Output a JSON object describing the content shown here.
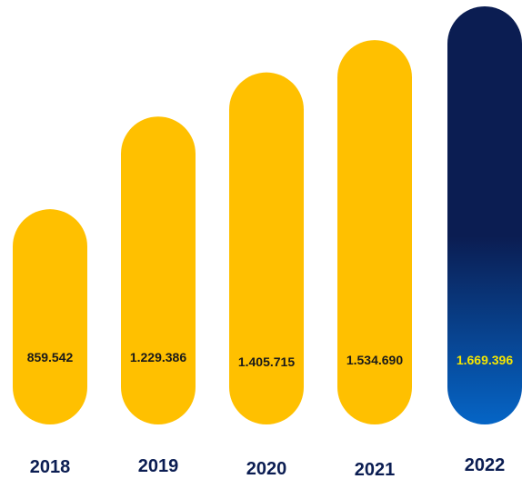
{
  "chart_data": {
    "type": "bar",
    "title": "",
    "xlabel": "",
    "ylabel": "",
    "categories": [
      "2018",
      "2019",
      "2020",
      "2021",
      "2022"
    ],
    "values": [
      859542,
      1229386,
      1405715,
      1534690,
      1669396
    ],
    "value_labels": [
      "859.542",
      "1.229.386",
      "1.405.715",
      "1.534.690",
      "1.669.396"
    ],
    "ylim": [
      0,
      1669396
    ],
    "grid": false,
    "legend": "none",
    "colors": {
      "bar": "#FFC000",
      "highlight_top": "#0B1D52",
      "highlight_bottom": "#0565C6",
      "value_text": "#1A1A1A",
      "highlight_value_text": "#F5E600",
      "year_text": "#0B1D52"
    },
    "highlight_index": 4
  }
}
